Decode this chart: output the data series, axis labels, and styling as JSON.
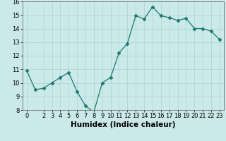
{
  "x": [
    0,
    1,
    2,
    3,
    4,
    5,
    6,
    7,
    8,
    9,
    10,
    11,
    12,
    13,
    14,
    15,
    16,
    17,
    18,
    19,
    20,
    21,
    22,
    23
  ],
  "y": [
    10.9,
    9.5,
    9.6,
    10.0,
    10.4,
    10.75,
    9.35,
    8.3,
    7.85,
    10.0,
    10.4,
    12.2,
    12.9,
    14.95,
    14.7,
    15.6,
    14.95,
    14.8,
    14.6,
    14.75,
    14.0,
    14.0,
    13.8,
    13.2
  ],
  "line_color": "#1a7a6e",
  "marker": "D",
  "marker_size": 2.5,
  "xlabel": "Humidex (Indice chaleur)",
  "xlim": [
    -0.5,
    23.5
  ],
  "ylim": [
    8,
    16
  ],
  "yticks": [
    8,
    9,
    10,
    11,
    12,
    13,
    14,
    15,
    16
  ],
  "xticks": [
    0,
    2,
    3,
    4,
    5,
    6,
    7,
    8,
    9,
    10,
    11,
    12,
    13,
    14,
    15,
    16,
    17,
    18,
    19,
    20,
    21,
    22,
    23
  ],
  "xtick_labels": [
    "0",
    "2",
    "3",
    "4",
    "5",
    "6",
    "7",
    "8",
    "9",
    "10",
    "11",
    "12",
    "13",
    "14",
    "15",
    "16",
    "17",
    "18",
    "19",
    "20",
    "21",
    "22",
    "23"
  ],
  "background_color": "#cce9ea",
  "grid_color": "#add6d8",
  "xlabel_fontsize": 7.5,
  "tick_fontsize": 6
}
